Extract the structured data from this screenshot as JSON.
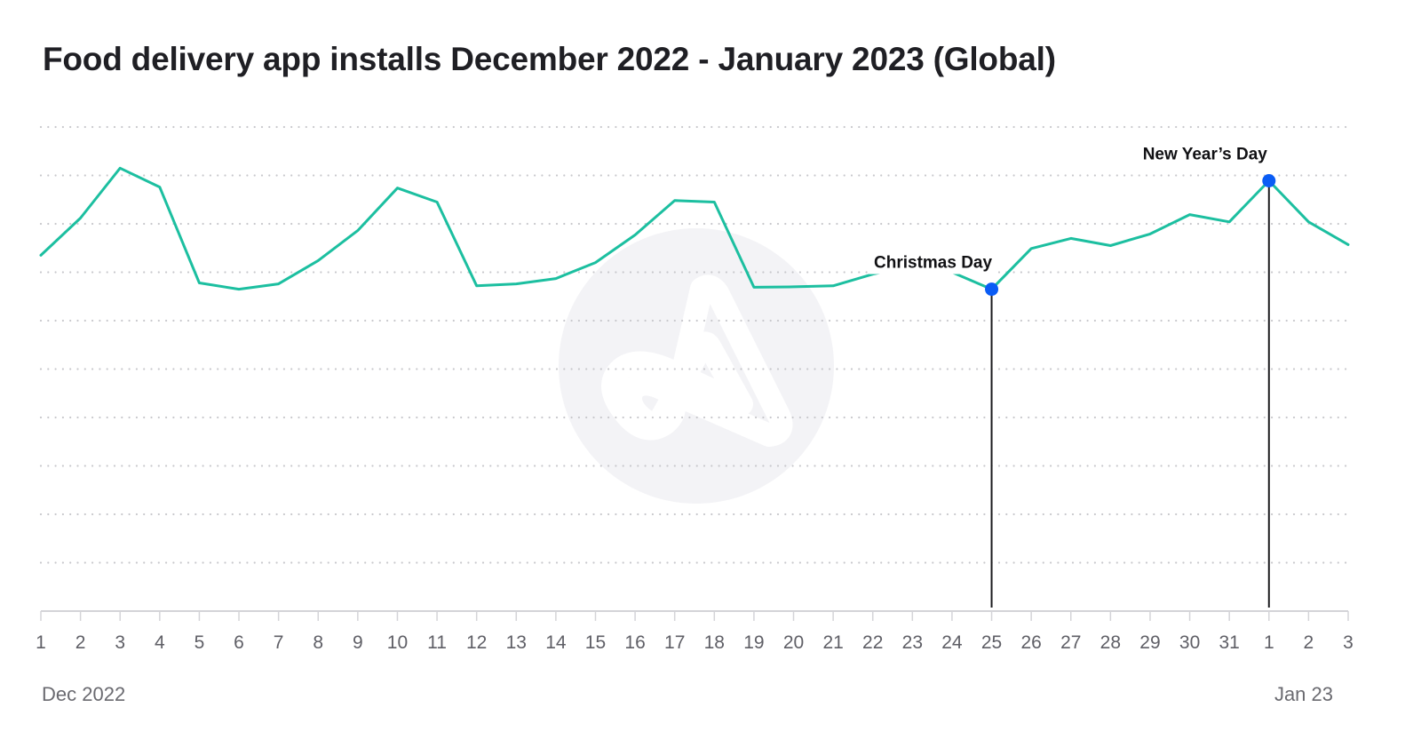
{
  "chart_data": {
    "type": "line",
    "title": "Food delivery app installs December 2022 - January 2023 (Global)",
    "xlabel": "",
    "ylabel": "",
    "y_units_note": "No y-axis labels shown; values estimated in gridline units (baseline = 0, top gridline = 10)",
    "ylim": [
      0,
      10
    ],
    "grid": true,
    "gridline_count": 10,
    "x": [
      "1",
      "2",
      "3",
      "4",
      "5",
      "6",
      "7",
      "8",
      "9",
      "10",
      "11",
      "12",
      "13",
      "14",
      "15",
      "16",
      "17",
      "18",
      "19",
      "20",
      "21",
      "22",
      "23",
      "24",
      "25",
      "26",
      "27",
      "28",
      "29",
      "30",
      "31",
      "1",
      "2",
      "3"
    ],
    "series": [
      {
        "name": "Food delivery app installs",
        "color": "#1cbfa0",
        "values": [
          7.35,
          8.12,
          9.15,
          8.76,
          6.78,
          6.65,
          6.76,
          7.24,
          7.86,
          8.74,
          8.45,
          6.72,
          6.76,
          6.87,
          7.2,
          7.77,
          8.48,
          8.45,
          6.69,
          6.7,
          6.72,
          6.96,
          7.13,
          7.0,
          6.65,
          7.49,
          7.7,
          7.55,
          7.79,
          8.19,
          8.04,
          8.89,
          8.04,
          7.57
        ]
      }
    ],
    "period_labels": [
      {
        "text": "Dec 2022",
        "position": "bottom-left"
      },
      {
        "text": "Jan 23",
        "position": "bottom-right"
      }
    ],
    "annotations": [
      {
        "label": "Christmas Day",
        "x_index": 24,
        "marker_color": "#0a5cf5"
      },
      {
        "label": "New Year’s Day",
        "x_index": 31,
        "marker_color": "#0a5cf5"
      }
    ],
    "colors": {
      "line": "#1cbfa0",
      "marker": "#0a5cf5",
      "grid": "#c8c8cc",
      "axis": "#d4d4d8",
      "watermark_circle": "#f3f3f6"
    }
  }
}
